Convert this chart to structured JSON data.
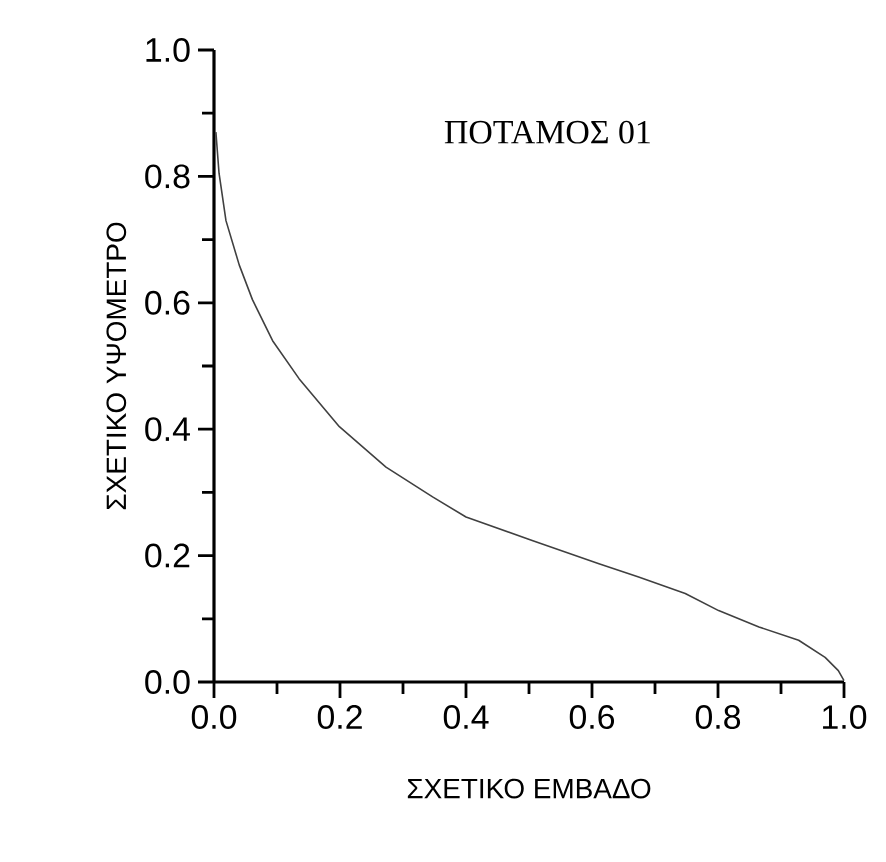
{
  "chart_data": {
    "type": "line",
    "xlabel": "ΣΧΕΤΙΚΟ ΕΜΒΑΔΟ",
    "ylabel": "ΣΧΕΤΙΚΟ ΥΨΟΜΕΤΡΟ",
    "annotations": [
      "ΠΟΤΑΜΟΣ 01"
    ],
    "xlim": [
      0,
      1
    ],
    "ylim": [
      0,
      1
    ],
    "xticks": [
      {
        "value": 0,
        "label": "0.0"
      },
      {
        "value": 0.2,
        "label": "0.2"
      },
      {
        "value": 0.4,
        "label": "0.4"
      },
      {
        "value": 0.6,
        "label": "0.6"
      },
      {
        "value": 0.8,
        "label": "0.8"
      },
      {
        "value": 1,
        "label": "1.0"
      }
    ],
    "yticks": [
      {
        "value": 0,
        "label": "0.0"
      },
      {
        "value": 0.2,
        "label": "0.2"
      },
      {
        "value": 0.4,
        "label": "0.4"
      },
      {
        "value": 0.6,
        "label": "0.6"
      },
      {
        "value": 0.8,
        "label": "0.8"
      },
      {
        "value": 1,
        "label": "1.0"
      }
    ],
    "grid": false,
    "marker": "none",
    "line_style": "solid",
    "series": [
      {
        "color": "#404040",
        "x": [
          0.003,
          0.008,
          0.019,
          0.04,
          0.061,
          0.093,
          0.135,
          0.199,
          0.273,
          0.347,
          0.4,
          0.505,
          0.611,
          0.674,
          0.748,
          0.801,
          0.865,
          0.928,
          0.97,
          0.991,
          1.0
        ],
        "values": [
          0.87,
          0.805,
          0.73,
          0.66,
          0.605,
          0.54,
          0.48,
          0.404,
          0.34,
          0.293,
          0.261,
          0.224,
          0.187,
          0.166,
          0.14,
          0.113,
          0.087,
          0.066,
          0.039,
          0.018,
          0.002
        ]
      }
    ]
  }
}
